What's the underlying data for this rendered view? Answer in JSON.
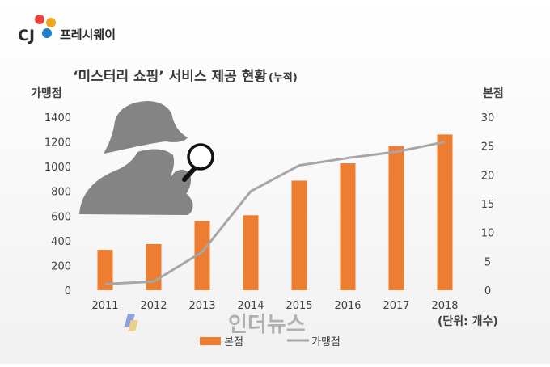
{
  "brand": {
    "cj": "CJ",
    "name": "프레시웨이",
    "logo_colors": [
      "#e8423a",
      "#f5a21c",
      "#1f7fc6"
    ]
  },
  "watermark": "인더뉴스",
  "chart_data": {
    "type": "bar+line",
    "title": "‘미스터리 쇼핑’ 서비스 제공 현황",
    "title_suffix": "(누적)",
    "left_axis_label": "가맹점",
    "right_axis_label": "본점",
    "unit_note": "(단위: 개수)",
    "categories": [
      "2011",
      "2012",
      "2013",
      "2014",
      "2015",
      "2016",
      "2017",
      "2018"
    ],
    "left_ylim": [
      0,
      1400
    ],
    "left_ticks": [
      "0",
      "200",
      "400",
      "600",
      "800",
      "1000",
      "1200",
      "1400"
    ],
    "right_ylim": [
      0,
      30
    ],
    "right_ticks": [
      "0",
      "5",
      "10",
      "15",
      "20",
      "25",
      "30"
    ],
    "series": [
      {
        "name": "본점",
        "type": "bar",
        "axis": "right",
        "color": "#ed7d31",
        "values": [
          7,
          8,
          12,
          13,
          19,
          22,
          25,
          27
        ]
      },
      {
        "name": "가맹점",
        "type": "line",
        "axis": "left",
        "color": "#a6a6a6",
        "values": [
          50,
          70,
          310,
          800,
          1010,
          1070,
          1120,
          1200
        ]
      }
    ],
    "legend_position": "bottom",
    "grid": false
  }
}
